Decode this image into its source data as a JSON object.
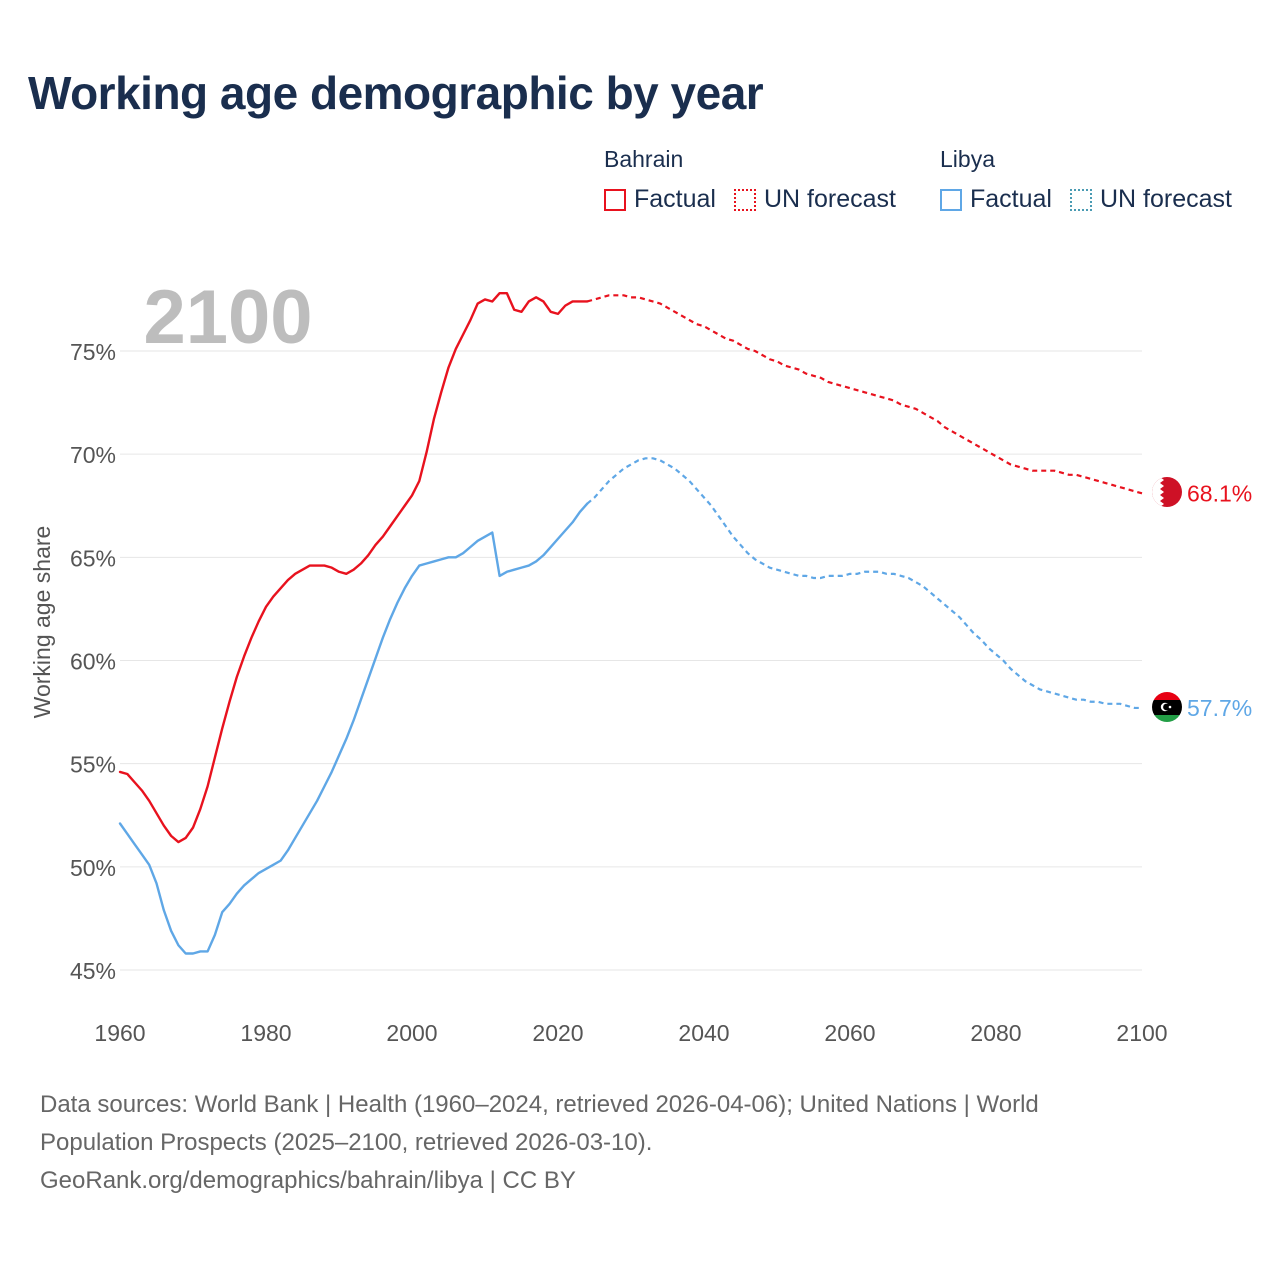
{
  "title": "Working age demographic by year",
  "colors": {
    "bahrain": "#e8121e",
    "libya": "#5fa7e6",
    "forecast_swatch_libya": "#4a9bb3",
    "grid": "#e6e6e6",
    "axis_text": "#555555",
    "year_watermark": "#bdbdbd"
  },
  "legend": {
    "groups": [
      {
        "country": "Bahrain",
        "factual": "Factual",
        "forecast": "UN forecast"
      },
      {
        "country": "Libya",
        "factual": "Factual",
        "forecast": "UN forecast"
      }
    ]
  },
  "footer": {
    "line1": "Data sources: World Bank | Health (1960–2024, retrieved 2026-04-06); United Nations | World",
    "line2": "Population Prospects (2025–2100, retrieved 2026-03-10).",
    "line3": "GeoRank.org/demographics/bahrain/libya | CC BY"
  },
  "chart_data": {
    "type": "line",
    "title": "Working age demographic by year",
    "xlabel": "",
    "ylabel": "Working age share",
    "xlim": [
      1960,
      2100
    ],
    "ylim": [
      44,
      78.5
    ],
    "xticks": [
      1960,
      1980,
      2000,
      2020,
      2040,
      2060,
      2080,
      2100
    ],
    "yticks": [
      45,
      50,
      55,
      60,
      65,
      70,
      75
    ],
    "ytick_labels": [
      "45%",
      "50%",
      "55%",
      "60%",
      "65%",
      "70%",
      "75%"
    ],
    "year_label": "2100",
    "forecast_start": 2024,
    "series": [
      {
        "name": "Bahrain",
        "end_label": "68.1%",
        "points": [
          [
            1960,
            54.6
          ],
          [
            1961,
            54.5
          ],
          [
            1962,
            54.1
          ],
          [
            1963,
            53.7
          ],
          [
            1964,
            53.2
          ],
          [
            1965,
            52.6
          ],
          [
            1966,
            52.0
          ],
          [
            1967,
            51.5
          ],
          [
            1968,
            51.2
          ],
          [
            1969,
            51.4
          ],
          [
            1970,
            51.9
          ],
          [
            1971,
            52.8
          ],
          [
            1972,
            53.9
          ],
          [
            1973,
            55.3
          ],
          [
            1974,
            56.7
          ],
          [
            1975,
            58.0
          ],
          [
            1976,
            59.2
          ],
          [
            1977,
            60.2
          ],
          [
            1978,
            61.1
          ],
          [
            1979,
            61.9
          ],
          [
            1980,
            62.6
          ],
          [
            1981,
            63.1
          ],
          [
            1982,
            63.5
          ],
          [
            1983,
            63.9
          ],
          [
            1984,
            64.2
          ],
          [
            1985,
            64.4
          ],
          [
            1986,
            64.6
          ],
          [
            1987,
            64.6
          ],
          [
            1988,
            64.6
          ],
          [
            1989,
            64.5
          ],
          [
            1990,
            64.3
          ],
          [
            1991,
            64.2
          ],
          [
            1992,
            64.4
          ],
          [
            1993,
            64.7
          ],
          [
            1994,
            65.1
          ],
          [
            1995,
            65.6
          ],
          [
            1996,
            66.0
          ],
          [
            1997,
            66.5
          ],
          [
            1998,
            67.0
          ],
          [
            1999,
            67.5
          ],
          [
            2000,
            68.0
          ],
          [
            2001,
            68.7
          ],
          [
            2002,
            70.1
          ],
          [
            2003,
            71.7
          ],
          [
            2004,
            73.0
          ],
          [
            2005,
            74.2
          ],
          [
            2006,
            75.1
          ],
          [
            2007,
            75.8
          ],
          [
            2008,
            76.5
          ],
          [
            2009,
            77.3
          ],
          [
            2010,
            77.5
          ],
          [
            2011,
            77.4
          ],
          [
            2012,
            77.8
          ],
          [
            2013,
            77.8
          ],
          [
            2014,
            77.0
          ],
          [
            2015,
            76.9
          ],
          [
            2016,
            77.4
          ],
          [
            2017,
            77.6
          ],
          [
            2018,
            77.4
          ],
          [
            2019,
            76.9
          ],
          [
            2020,
            76.8
          ],
          [
            2021,
            77.2
          ],
          [
            2022,
            77.4
          ],
          [
            2023,
            77.4
          ],
          [
            2024,
            77.4
          ],
          [
            2025,
            77.5
          ],
          [
            2026,
            77.6
          ],
          [
            2027,
            77.7
          ],
          [
            2028,
            77.7
          ],
          [
            2029,
            77.7
          ],
          [
            2030,
            77.6
          ],
          [
            2031,
            77.6
          ],
          [
            2032,
            77.5
          ],
          [
            2033,
            77.4
          ],
          [
            2034,
            77.3
          ],
          [
            2035,
            77.1
          ],
          [
            2036,
            76.9
          ],
          [
            2037,
            76.7
          ],
          [
            2038,
            76.5
          ],
          [
            2039,
            76.3
          ],
          [
            2040,
            76.2
          ],
          [
            2041,
            76.0
          ],
          [
            2042,
            75.8
          ],
          [
            2043,
            75.6
          ],
          [
            2044,
            75.5
          ],
          [
            2045,
            75.3
          ],
          [
            2046,
            75.1
          ],
          [
            2047,
            75.0
          ],
          [
            2048,
            74.8
          ],
          [
            2049,
            74.6
          ],
          [
            2050,
            74.5
          ],
          [
            2051,
            74.3
          ],
          [
            2052,
            74.2
          ],
          [
            2053,
            74.1
          ],
          [
            2054,
            73.9
          ],
          [
            2055,
            73.8
          ],
          [
            2056,
            73.7
          ],
          [
            2057,
            73.5
          ],
          [
            2058,
            73.4
          ],
          [
            2059,
            73.3
          ],
          [
            2060,
            73.2
          ],
          [
            2061,
            73.1
          ],
          [
            2062,
            73.0
          ],
          [
            2063,
            72.9
          ],
          [
            2064,
            72.8
          ],
          [
            2065,
            72.7
          ],
          [
            2066,
            72.6
          ],
          [
            2067,
            72.4
          ],
          [
            2068,
            72.3
          ],
          [
            2069,
            72.2
          ],
          [
            2070,
            72.0
          ],
          [
            2071,
            71.8
          ],
          [
            2072,
            71.6
          ],
          [
            2073,
            71.3
          ],
          [
            2074,
            71.1
          ],
          [
            2075,
            70.9
          ],
          [
            2076,
            70.7
          ],
          [
            2077,
            70.5
          ],
          [
            2078,
            70.3
          ],
          [
            2079,
            70.1
          ],
          [
            2080,
            69.9
          ],
          [
            2081,
            69.7
          ],
          [
            2082,
            69.5
          ],
          [
            2083,
            69.4
          ],
          [
            2084,
            69.3
          ],
          [
            2085,
            69.2
          ],
          [
            2086,
            69.2
          ],
          [
            2087,
            69.2
          ],
          [
            2088,
            69.2
          ],
          [
            2089,
            69.1
          ],
          [
            2090,
            69.0
          ],
          [
            2091,
            69.0
          ],
          [
            2092,
            68.9
          ],
          [
            2093,
            68.8
          ],
          [
            2094,
            68.7
          ],
          [
            2095,
            68.6
          ],
          [
            2096,
            68.5
          ],
          [
            2097,
            68.4
          ],
          [
            2098,
            68.3
          ],
          [
            2099,
            68.2
          ],
          [
            2100,
            68.1
          ]
        ]
      },
      {
        "name": "Libya",
        "end_label": "57.7%",
        "points": [
          [
            1960,
            52.1
          ],
          [
            1961,
            51.6
          ],
          [
            1962,
            51.1
          ],
          [
            1963,
            50.6
          ],
          [
            1964,
            50.1
          ],
          [
            1965,
            49.2
          ],
          [
            1966,
            47.9
          ],
          [
            1967,
            46.9
          ],
          [
            1968,
            46.2
          ],
          [
            1969,
            45.8
          ],
          [
            1970,
            45.8
          ],
          [
            1971,
            45.9
          ],
          [
            1972,
            45.9
          ],
          [
            1973,
            46.7
          ],
          [
            1974,
            47.8
          ],
          [
            1975,
            48.2
          ],
          [
            1976,
            48.7
          ],
          [
            1977,
            49.1
          ],
          [
            1978,
            49.4
          ],
          [
            1979,
            49.7
          ],
          [
            1980,
            49.9
          ],
          [
            1981,
            50.1
          ],
          [
            1982,
            50.3
          ],
          [
            1983,
            50.8
          ],
          [
            1984,
            51.4
          ],
          [
            1985,
            52.0
          ],
          [
            1986,
            52.6
          ],
          [
            1987,
            53.2
          ],
          [
            1988,
            53.9
          ],
          [
            1989,
            54.6
          ],
          [
            1990,
            55.4
          ],
          [
            1991,
            56.2
          ],
          [
            1992,
            57.1
          ],
          [
            1993,
            58.1
          ],
          [
            1994,
            59.1
          ],
          [
            1995,
            60.1
          ],
          [
            1996,
            61.1
          ],
          [
            1997,
            62.0
          ],
          [
            1998,
            62.8
          ],
          [
            1999,
            63.5
          ],
          [
            2000,
            64.1
          ],
          [
            2001,
            64.6
          ],
          [
            2002,
            64.7
          ],
          [
            2003,
            64.8
          ],
          [
            2004,
            64.9
          ],
          [
            2005,
            65.0
          ],
          [
            2006,
            65.0
          ],
          [
            2007,
            65.2
          ],
          [
            2008,
            65.5
          ],
          [
            2009,
            65.8
          ],
          [
            2010,
            66.0
          ],
          [
            2011,
            66.2
          ],
          [
            2012,
            64.1
          ],
          [
            2013,
            64.3
          ],
          [
            2014,
            64.4
          ],
          [
            2015,
            64.5
          ],
          [
            2016,
            64.6
          ],
          [
            2017,
            64.8
          ],
          [
            2018,
            65.1
          ],
          [
            2019,
            65.5
          ],
          [
            2020,
            65.9
          ],
          [
            2021,
            66.3
          ],
          [
            2022,
            66.7
          ],
          [
            2023,
            67.2
          ],
          [
            2024,
            67.6
          ],
          [
            2025,
            67.9
          ],
          [
            2026,
            68.3
          ],
          [
            2027,
            68.7
          ],
          [
            2028,
            69.0
          ],
          [
            2029,
            69.3
          ],
          [
            2030,
            69.5
          ],
          [
            2031,
            69.7
          ],
          [
            2032,
            69.8
          ],
          [
            2033,
            69.8
          ],
          [
            2034,
            69.7
          ],
          [
            2035,
            69.5
          ],
          [
            2036,
            69.3
          ],
          [
            2037,
            69.0
          ],
          [
            2038,
            68.7
          ],
          [
            2039,
            68.3
          ],
          [
            2040,
            67.9
          ],
          [
            2041,
            67.5
          ],
          [
            2042,
            67.0
          ],
          [
            2043,
            66.5
          ],
          [
            2044,
            66.0
          ],
          [
            2045,
            65.6
          ],
          [
            2046,
            65.2
          ],
          [
            2047,
            64.9
          ],
          [
            2048,
            64.7
          ],
          [
            2049,
            64.5
          ],
          [
            2050,
            64.4
          ],
          [
            2051,
            64.3
          ],
          [
            2052,
            64.2
          ],
          [
            2053,
            64.1
          ],
          [
            2054,
            64.1
          ],
          [
            2055,
            64.0
          ],
          [
            2056,
            64.0
          ],
          [
            2057,
            64.1
          ],
          [
            2058,
            64.1
          ],
          [
            2059,
            64.1
          ],
          [
            2060,
            64.2
          ],
          [
            2061,
            64.2
          ],
          [
            2062,
            64.3
          ],
          [
            2063,
            64.3
          ],
          [
            2064,
            64.3
          ],
          [
            2065,
            64.2
          ],
          [
            2066,
            64.2
          ],
          [
            2067,
            64.1
          ],
          [
            2068,
            64.0
          ],
          [
            2069,
            63.8
          ],
          [
            2070,
            63.6
          ],
          [
            2071,
            63.3
          ],
          [
            2072,
            63.0
          ],
          [
            2073,
            62.7
          ],
          [
            2074,
            62.4
          ],
          [
            2075,
            62.1
          ],
          [
            2076,
            61.7
          ],
          [
            2077,
            61.3
          ],
          [
            2078,
            61.0
          ],
          [
            2079,
            60.6
          ],
          [
            2080,
            60.3
          ],
          [
            2081,
            60.0
          ],
          [
            2082,
            59.6
          ],
          [
            2083,
            59.3
          ],
          [
            2084,
            59.0
          ],
          [
            2085,
            58.8
          ],
          [
            2086,
            58.6
          ],
          [
            2087,
            58.5
          ],
          [
            2088,
            58.4
          ],
          [
            2089,
            58.3
          ],
          [
            2090,
            58.2
          ],
          [
            2091,
            58.1
          ],
          [
            2092,
            58.1
          ],
          [
            2093,
            58.0
          ],
          [
            2094,
            58.0
          ],
          [
            2095,
            57.9
          ],
          [
            2096,
            57.9
          ],
          [
            2097,
            57.9
          ],
          [
            2098,
            57.8
          ],
          [
            2099,
            57.7
          ],
          [
            2100,
            57.7
          ]
        ]
      }
    ]
  }
}
